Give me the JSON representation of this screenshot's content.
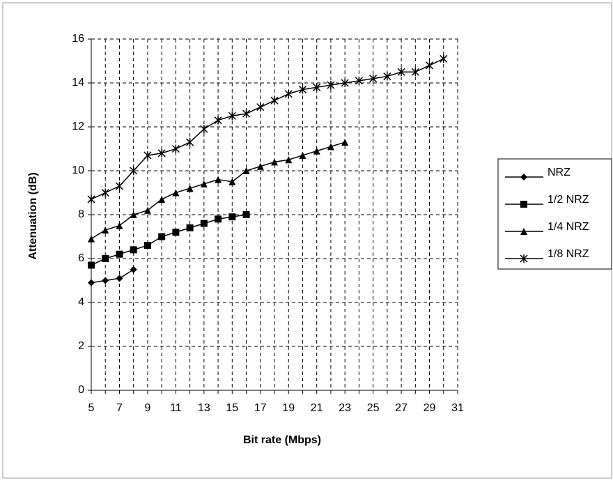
{
  "chart_data": {
    "type": "line",
    "x_label": "Bit rate (Mbps)",
    "y_label": "Attenuation (dB)",
    "xlim": [
      5,
      31
    ],
    "xticks": [
      5,
      7,
      9,
      11,
      13,
      15,
      17,
      19,
      21,
      23,
      25,
      27,
      29,
      31
    ],
    "xminorticks": [
      6,
      8,
      10,
      12,
      14,
      16,
      18,
      20,
      22,
      24,
      26,
      28,
      30
    ],
    "ylim": [
      0,
      16
    ],
    "yticks": [
      0,
      2,
      4,
      6,
      8,
      10,
      12,
      14,
      16
    ],
    "grid": true,
    "legend": "right",
    "series": [
      {
        "name": "NRZ",
        "color": "#000000",
        "marker": "diamond",
        "x": [
          5,
          6,
          7,
          8
        ],
        "values": [
          4.9,
          5.0,
          5.1,
          5.5
        ]
      },
      {
        "name": "1/2 NRZ",
        "color": "#000000",
        "marker": "square",
        "x": [
          5,
          6,
          7,
          8,
          9,
          10,
          11,
          12,
          13,
          14,
          15,
          16
        ],
        "values": [
          5.7,
          6.0,
          6.2,
          6.4,
          6.6,
          7.0,
          7.2,
          7.4,
          7.6,
          7.8,
          7.9,
          8.0
        ]
      },
      {
        "name": "1/4 NRZ",
        "color": "#000000",
        "marker": "triangle",
        "x": [
          5,
          6,
          7,
          8,
          9,
          10,
          11,
          12,
          13,
          14,
          15,
          16,
          17,
          18,
          19,
          20,
          21,
          22,
          23
        ],
        "values": [
          6.9,
          7.3,
          7.5,
          8.0,
          8.2,
          8.7,
          9.0,
          9.2,
          9.4,
          9.6,
          9.5,
          10.0,
          10.2,
          10.4,
          10.5,
          10.7,
          10.9,
          11.1,
          11.3
        ]
      },
      {
        "name": "1/8 NRZ",
        "color": "#000000",
        "marker": "star",
        "x": [
          5,
          6,
          7,
          8,
          9,
          10,
          11,
          12,
          13,
          14,
          15,
          16,
          17,
          18,
          19,
          20,
          21,
          22,
          23,
          24,
          25,
          26,
          27,
          28,
          29,
          30
        ],
        "values": [
          8.7,
          9.0,
          9.3,
          10.0,
          10.7,
          10.8,
          11.0,
          11.3,
          11.9,
          12.3,
          12.5,
          12.6,
          12.9,
          13.2,
          13.5,
          13.7,
          13.8,
          13.9,
          14.0,
          14.1,
          14.2,
          14.3,
          14.5,
          14.5,
          14.8,
          15.1
        ]
      }
    ]
  }
}
